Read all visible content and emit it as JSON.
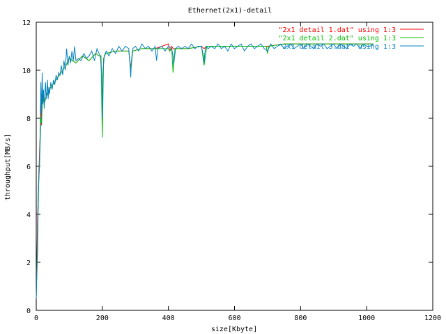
{
  "chart_data": {
    "type": "line",
    "title": "Ethernet(2x1)-detail",
    "xlabel": "size[Kbyte]",
    "ylabel": "throughput[MB/s]",
    "xlim": [
      0,
      1200
    ],
    "ylim": [
      0,
      12
    ],
    "xticks": [
      0,
      200,
      400,
      600,
      800,
      1000,
      1200
    ],
    "yticks": [
      0,
      2,
      4,
      6,
      8,
      10,
      12
    ],
    "grid": false,
    "legend_position": "top-right",
    "series": [
      {
        "name": "\"2x1 detail 1.dat\" using 1:3",
        "color": "#ff0000",
        "x": [
          0,
          4,
          8,
          10,
          12,
          14,
          16,
          18,
          20,
          24,
          30,
          40,
          50,
          60,
          70,
          80,
          90,
          100,
          120,
          140,
          160,
          180,
          190,
          196,
          200,
          204,
          210,
          240,
          280,
          286,
          292,
          320,
          360,
          400,
          404,
          410,
          414,
          420,
          460,
          500,
          508,
          516,
          560,
          600,
          650,
          700,
          750,
          800,
          850,
          900,
          950,
          1000,
          1020
        ],
        "y": [
          0.5,
          3.8,
          5.8,
          6.6,
          7.4,
          8.8,
          7.7,
          8.9,
          9.0,
          8.6,
          8.9,
          9.2,
          9.4,
          9.6,
          9.8,
          10.0,
          10.2,
          10.5,
          10.3,
          10.6,
          10.4,
          10.7,
          10.6,
          10.6,
          8.5,
          10.5,
          10.7,
          10.8,
          10.8,
          10.1,
          10.8,
          10.9,
          10.9,
          11.1,
          10.8,
          11.0,
          10.9,
          10.9,
          10.9,
          11.0,
          10.9,
          11.0,
          11.0,
          11.0,
          11.0,
          11.0,
          11.1,
          11.1,
          11.1,
          11.1,
          11.1,
          11.1,
          11.1
        ]
      },
      {
        "name": "\"2x1 detail 2.dat\" using 1:3",
        "color": "#00c000",
        "x": [
          0,
          4,
          8,
          10,
          12,
          14,
          16,
          18,
          20,
          24,
          30,
          40,
          50,
          60,
          70,
          80,
          90,
          100,
          120,
          140,
          160,
          180,
          190,
          196,
          200,
          204,
          210,
          240,
          280,
          286,
          292,
          320,
          360,
          400,
          404,
          410,
          414,
          420,
          460,
          500,
          508,
          516,
          560,
          600,
          650,
          696,
          700,
          704,
          750,
          800,
          850,
          900,
          950,
          1000,
          1020
        ],
        "y": [
          0.5,
          3.0,
          5.5,
          6.2,
          7.0,
          8.0,
          7.8,
          8.5,
          8.9,
          8.6,
          8.9,
          9.2,
          9.4,
          9.6,
          9.8,
          10.0,
          10.2,
          10.5,
          10.3,
          10.6,
          10.4,
          10.7,
          10.6,
          10.6,
          7.2,
          10.5,
          10.7,
          10.8,
          10.8,
          10.0,
          10.8,
          10.9,
          10.9,
          10.9,
          10.8,
          10.9,
          9.9,
          10.9,
          10.9,
          11.0,
          10.2,
          11.0,
          11.0,
          11.0,
          11.0,
          11.0,
          10.7,
          11.0,
          11.1,
          11.1,
          11.1,
          11.1,
          11.1,
          11.1,
          11.1
        ]
      },
      {
        "name": "\"2x1 detail 3.dat\" using 1:3",
        "color": "#0080c0",
        "x": [
          0,
          4,
          6,
          8,
          10,
          12,
          14,
          16,
          18,
          20,
          22,
          24,
          26,
          28,
          30,
          32,
          34,
          36,
          38,
          40,
          44,
          48,
          52,
          56,
          60,
          64,
          68,
          72,
          76,
          80,
          84,
          88,
          92,
          96,
          100,
          104,
          108,
          112,
          116,
          120,
          128,
          136,
          144,
          152,
          160,
          168,
          176,
          184,
          190,
          194,
          198,
          200,
          202,
          206,
          212,
          220,
          230,
          240,
          250,
          260,
          270,
          280,
          284,
          286,
          288,
          292,
          300,
          310,
          320,
          330,
          340,
          350,
          360,
          364,
          368,
          380,
          390,
          400,
          410,
          414,
          416,
          418,
          422,
          430,
          440,
          450,
          460,
          470,
          480,
          490,
          500,
          506,
          508,
          510,
          514,
          520,
          530,
          540,
          550,
          560,
          570,
          580,
          590,
          600,
          610,
          620,
          630,
          640,
          650,
          660,
          670,
          680,
          690,
          700,
          710,
          720,
          730,
          740,
          750,
          760,
          770,
          780,
          790,
          800,
          810,
          820,
          830,
          840,
          850,
          860,
          870,
          880,
          890,
          900,
          910,
          920,
          930,
          940,
          950,
          960,
          970,
          980,
          990,
          1000,
          1010,
          1020
        ],
        "y": [
          0.5,
          2.5,
          4.8,
          5.5,
          6.0,
          7.5,
          9.5,
          8.2,
          9.9,
          8.6,
          9.2,
          8.4,
          9.0,
          9.5,
          8.8,
          9.1,
          9.6,
          8.8,
          9.3,
          9.0,
          9.5,
          9.2,
          9.6,
          9.4,
          9.8,
          9.6,
          9.9,
          9.8,
          10.2,
          9.8,
          10.4,
          10.0,
          10.9,
          10.2,
          10.6,
          10.3,
          10.8,
          10.4,
          11.0,
          10.4,
          10.5,
          10.4,
          10.7,
          10.5,
          10.6,
          10.8,
          10.4,
          10.9,
          10.7,
          10.6,
          9.8,
          8.0,
          10.0,
          10.6,
          10.8,
          10.6,
          10.9,
          10.7,
          11.0,
          10.8,
          11.0,
          10.9,
          10.2,
          9.7,
          10.4,
          10.9,
          11.0,
          10.8,
          11.1,
          10.9,
          11.0,
          10.8,
          11.0,
          10.4,
          10.9,
          11.0,
          10.8,
          11.0,
          10.9,
          10.6,
          10.2,
          10.5,
          10.9,
          11.0,
          10.9,
          11.0,
          10.9,
          11.1,
          10.9,
          11.0,
          11.0,
          10.6,
          10.3,
          10.7,
          11.0,
          10.9,
          11.0,
          10.9,
          11.1,
          10.9,
          11.0,
          10.8,
          11.1,
          10.9,
          11.0,
          11.1,
          10.8,
          11.0,
          11.1,
          10.9,
          11.0,
          11.1,
          10.9,
          10.8,
          11.1,
          10.9,
          11.0,
          11.1,
          10.9,
          11.0,
          11.1,
          10.9,
          11.0,
          11.1,
          10.9,
          11.1,
          11.0,
          10.9,
          11.1,
          11.0,
          11.1,
          10.9,
          11.0,
          11.1,
          10.9,
          11.1,
          11.0,
          10.9,
          11.1,
          11.0,
          11.1,
          10.9,
          11.1,
          11.0,
          11.0,
          11.1
        ]
      }
    ]
  }
}
